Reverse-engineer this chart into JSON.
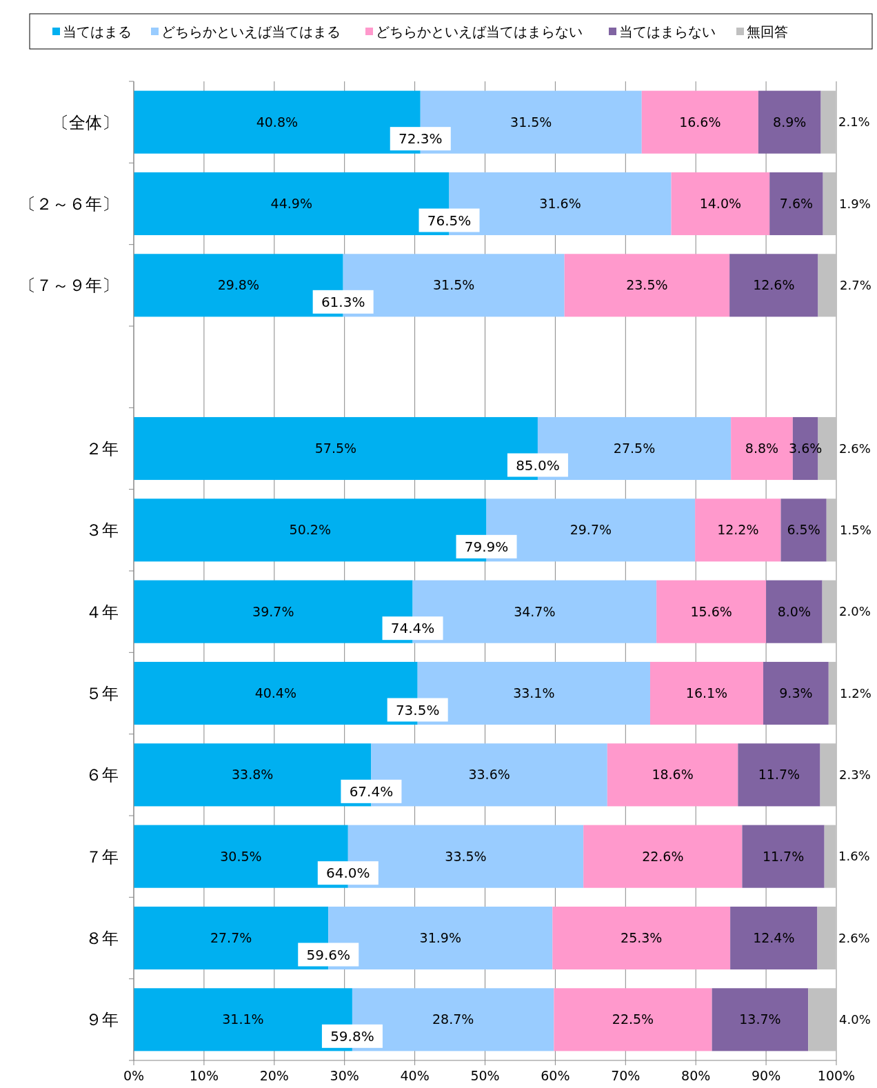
{
  "chart_data": {
    "type": "bar",
    "orientation": "horizontal",
    "stacked": true,
    "legend": "top",
    "grid": "x",
    "categories": [
      "〔全体〕",
      "〔２～６年〕",
      "〔７～９年〕",
      null,
      "２年",
      "３年",
      "４年",
      "５年",
      "６年",
      "７年",
      "８年",
      "９年"
    ],
    "xlim": [
      0,
      100
    ],
    "xticks": [
      {
        "value": 0,
        "label": "0%"
      },
      {
        "value": 10,
        "label": "10%"
      },
      {
        "value": 20,
        "label": "20%"
      },
      {
        "value": 30,
        "label": "30%"
      },
      {
        "value": 40,
        "label": "40%"
      },
      {
        "value": 50,
        "label": "50%"
      },
      {
        "value": 60,
        "label": "60%"
      },
      {
        "value": 70,
        "label": "70%"
      },
      {
        "value": 80,
        "label": "80%"
      },
      {
        "value": 90,
        "label": "90%"
      },
      {
        "value": 100,
        "label": "100%"
      }
    ],
    "series": [
      {
        "name": "当てはまる",
        "color": "#00b0f0",
        "values": [
          40.8,
          44.9,
          29.8,
          null,
          57.5,
          50.2,
          39.7,
          40.4,
          33.8,
          30.5,
          27.7,
          31.1
        ],
        "value_labels": [
          "40.8%",
          "44.9%",
          "29.8%",
          null,
          "57.5%",
          "50.2%",
          "39.7%",
          "40.4%",
          "33.8%",
          "30.5%",
          "27.7%",
          "31.1%"
        ]
      },
      {
        "name": "どちらかといえば当てはまる",
        "color": "#99ccff",
        "values": [
          31.5,
          31.6,
          31.5,
          null,
          27.5,
          29.7,
          34.7,
          33.1,
          33.6,
          33.5,
          31.9,
          28.7
        ],
        "value_labels": [
          "31.5%",
          "31.6%",
          "31.5%",
          null,
          "27.5%",
          "29.7%",
          "34.7%",
          "33.1%",
          "33.6%",
          "33.5%",
          "31.9%",
          "28.7%"
        ]
      },
      {
        "name": "どちらかといえば当てはまらない",
        "color": "#ff99cc",
        "values": [
          16.6,
          14.0,
          23.5,
          null,
          8.8,
          12.2,
          15.6,
          16.1,
          18.6,
          22.6,
          25.3,
          22.5
        ],
        "value_labels": [
          "16.6%",
          "14.0%",
          "23.5%",
          null,
          "8.8%",
          "12.2%",
          "15.6%",
          "16.1%",
          "18.6%",
          "22.6%",
          "25.3%",
          "22.5%"
        ]
      },
      {
        "name": "当てはまらない",
        "color": "#8064a2",
        "values": [
          8.9,
          7.6,
          12.6,
          null,
          3.6,
          6.5,
          8.0,
          9.3,
          11.7,
          11.7,
          12.4,
          13.7
        ],
        "value_labels": [
          "8.9%",
          "7.6%",
          "12.6%",
          null,
          "3.6%",
          "6.5%",
          "8.0%",
          "9.3%",
          "11.7%",
          "11.7%",
          "12.4%",
          "13.7%"
        ]
      },
      {
        "name": "無回答",
        "color": "#c0c0c0",
        "values": [
          2.1,
          1.9,
          2.7,
          null,
          2.6,
          1.5,
          2.0,
          1.2,
          2.3,
          1.6,
          2.6,
          4.0
        ],
        "value_labels": [
          "2.1%",
          "1.9%",
          "2.7%",
          null,
          "2.6%",
          "1.5%",
          "2.0%",
          "1.2%",
          "2.3%",
          "1.6%",
          "2.6%",
          "4.0%"
        ]
      }
    ],
    "annotations": [
      {
        "text": "72.3%",
        "x": 40.8,
        "y": "〔全体〕"
      },
      {
        "text": "76.5%",
        "x": 44.9,
        "y": "〔２～６年〕"
      },
      {
        "text": "61.3%",
        "x": 29.8,
        "y": "〔７～９年〕"
      },
      {
        "text": "85.0%",
        "x": 57.5,
        "y": "２年"
      },
      {
        "text": "79.9%",
        "x": 50.2,
        "y": "３年"
      },
      {
        "text": "74.4%",
        "x": 39.7,
        "y": "４年"
      },
      {
        "text": "73.5%",
        "x": 40.4,
        "y": "５年"
      },
      {
        "text": "67.4%",
        "x": 33.8,
        "y": "６年"
      },
      {
        "text": "64.0%",
        "x": 30.5,
        "y": "７年"
      },
      {
        "text": "59.6%",
        "x": 27.7,
        "y": "８年"
      },
      {
        "text": "59.8%",
        "x": 31.1,
        "y": "９年"
      }
    ]
  }
}
